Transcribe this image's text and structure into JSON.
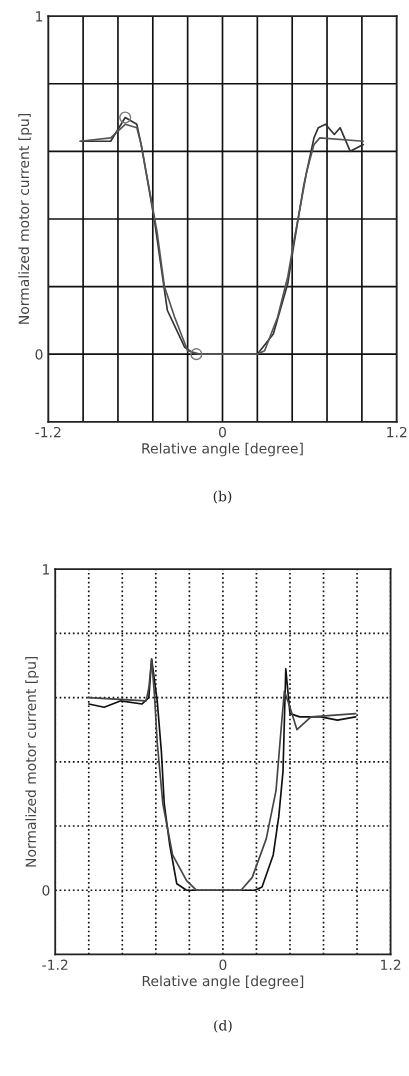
{
  "chart_data": [
    {
      "type": "line",
      "xlabel": "Relative angle [degree]",
      "ylabel": "Normalized motor current [pu]",
      "annotations": [
        "(b)"
      ],
      "xlim": [
        -1.2,
        1.2
      ],
      "ylim": [
        -0.2,
        1
      ],
      "xticks": [
        -1.2,
        {
          "value": -0.96,
          "label": null
        },
        {
          "value": -0.72,
          "label": null
        },
        {
          "value": -0.48,
          "label": null
        },
        {
          "value": -0.24,
          "label": null
        },
        0,
        {
          "value": 0.24,
          "label": null
        },
        {
          "value": 0.48,
          "label": null
        },
        {
          "value": 0.72,
          "label": null
        },
        {
          "value": 0.96,
          "label": null
        },
        1.2
      ],
      "yticks": [
        0,
        {
          "value": 0.2,
          "label": null
        },
        {
          "value": 0.4,
          "label": null
        },
        {
          "value": 0.6,
          "label": null
        },
        {
          "value": 0.8,
          "label": null
        },
        1
      ],
      "grid": true,
      "line_style": "solid",
      "marker": "none",
      "series": [
        {
          "color": "#333333",
          "x": [
            -0.98,
            -0.77,
            -0.67,
            -0.59,
            -0.56,
            -0.47,
            -0.38,
            -0.26,
            -0.19,
            0.24,
            0.35,
            0.45,
            0.49,
            0.56,
            0.63,
            0.66,
            0.71,
            0.77,
            0.81,
            0.88,
            0.97
          ],
          "values": [
            0.63,
            0.63,
            0.7,
            0.68,
            0.62,
            0.4,
            0.13,
            0.02,
            0,
            0,
            0.06,
            0.21,
            0.32,
            0.5,
            0.64,
            0.67,
            0.68,
            0.65,
            0.67,
            0.6,
            0.62
          ]
        },
        {
          "color": "#555555",
          "x": [
            -0.98,
            -0.77,
            -0.67,
            -0.59,
            -0.56,
            -0.45,
            -0.4,
            -0.33,
            -0.24,
            -0.15,
            0.24,
            0.29,
            0.38,
            0.45,
            0.49,
            0.58,
            0.63,
            0.67,
            0.97
          ],
          "values": [
            0.63,
            0.64,
            0.68,
            0.67,
            0.62,
            0.36,
            0.2,
            0.11,
            0.01,
            0,
            0,
            0.01,
            0.11,
            0.23,
            0.33,
            0.54,
            0.62,
            0.64,
            0.63
          ]
        },
        {
          "type": "scatter",
          "marker": "circle",
          "color": "#777777",
          "x": [
            -0.67,
            -0.18
          ],
          "values": [
            0.7,
            0
          ]
        }
      ]
    },
    {
      "type": "line",
      "xlabel": "Relative angle [degree]",
      "ylabel": "Normalized motor current [pu]",
      "annotations": [
        "(d)"
      ],
      "xlim": [
        -1.2,
        1.2
      ],
      "ylim": [
        -0.2,
        1
      ],
      "xticks": [
        -1.2,
        {
          "value": -0.96,
          "label": null
        },
        {
          "value": -0.72,
          "label": null
        },
        {
          "value": -0.48,
          "label": null
        },
        {
          "value": -0.24,
          "label": null
        },
        0,
        {
          "value": 0.24,
          "label": null
        },
        {
          "value": 0.48,
          "label": null
        },
        {
          "value": 0.72,
          "label": null
        },
        {
          "value": 0.96,
          "label": null
        },
        1.2
      ],
      "yticks": [
        0,
        {
          "value": 0.2,
          "label": null
        },
        {
          "value": 0.4,
          "label": null
        },
        {
          "value": 0.6,
          "label": null
        },
        {
          "value": 0.8,
          "label": null
        },
        1
      ],
      "grid": true,
      "line_style": "solid",
      "marker": "none",
      "series": [
        {
          "color": "#111111",
          "x": [
            -0.96,
            -0.85,
            -0.73,
            -0.58,
            -0.53,
            -0.51,
            -0.47,
            -0.44,
            -0.42,
            -0.38,
            -0.33,
            -0.26,
            0.23,
            0.28,
            0.36,
            0.4,
            0.43,
            0.45,
            0.48,
            0.55,
            0.7,
            0.82,
            0.95
          ],
          "values": [
            0.58,
            0.57,
            0.59,
            0.58,
            0.6,
            0.72,
            0.59,
            0.43,
            0.27,
            0.14,
            0.02,
            0,
            0,
            0.01,
            0.11,
            0.23,
            0.37,
            0.69,
            0.55,
            0.54,
            0.54,
            0.53,
            0.54
          ]
        },
        {
          "color": "#444444",
          "x": [
            -0.96,
            -0.55,
            -0.53,
            -0.51,
            -0.49,
            -0.47,
            -0.43,
            -0.36,
            -0.26,
            -0.19,
            0.13,
            0.21,
            0.31,
            0.38,
            0.42,
            0.44,
            0.48,
            0.53,
            0.63,
            0.95
          ],
          "values": [
            0.6,
            0.59,
            0.63,
            0.72,
            0.61,
            0.46,
            0.27,
            0.11,
            0.03,
            0,
            0,
            0.04,
            0.16,
            0.31,
            0.52,
            0.62,
            0.57,
            0.5,
            0.54,
            0.55
          ]
        }
      ]
    }
  ]
}
